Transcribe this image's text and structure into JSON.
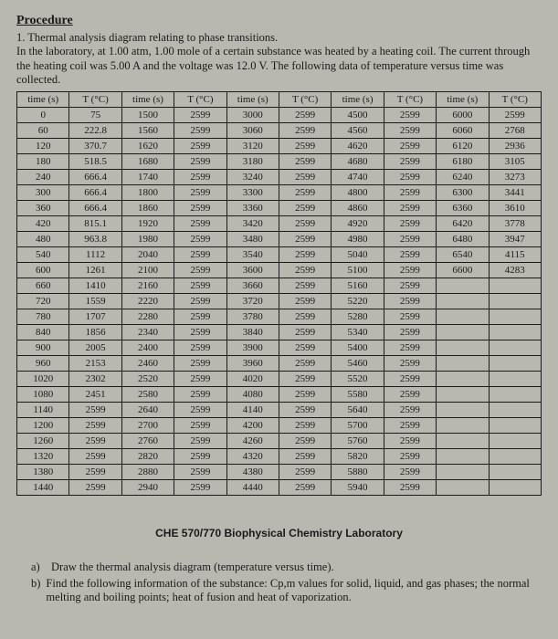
{
  "heading": "Procedure",
  "intro_lines": [
    "1. Thermal analysis diagram relating to phase transitions.",
    "In the laboratory, at 1.00 atm, 1.00 mole of a certain substance was heated by a heating coil. The current through the heating coil was 5.00 A and the voltage was 12.0 V. The following data of temperature versus time was collected."
  ],
  "table": {
    "headers": [
      "time (s)",
      "T (°C)",
      "time (s)",
      "T (°C)",
      "time (s)",
      "T (°C)",
      "time (s)",
      "T (°C)",
      "time (s)",
      "T (°C)"
    ],
    "rows": [
      [
        "0",
        "75",
        "1500",
        "2599",
        "3000",
        "2599",
        "4500",
        "2599",
        "6000",
        "2599"
      ],
      [
        "60",
        "222.8",
        "1560",
        "2599",
        "3060",
        "2599",
        "4560",
        "2599",
        "6060",
        "2768"
      ],
      [
        "120",
        "370.7",
        "1620",
        "2599",
        "3120",
        "2599",
        "4620",
        "2599",
        "6120",
        "2936"
      ],
      [
        "180",
        "518.5",
        "1680",
        "2599",
        "3180",
        "2599",
        "4680",
        "2599",
        "6180",
        "3105"
      ],
      [
        "240",
        "666.4",
        "1740",
        "2599",
        "3240",
        "2599",
        "4740",
        "2599",
        "6240",
        "3273"
      ],
      [
        "300",
        "666.4",
        "1800",
        "2599",
        "3300",
        "2599",
        "4800",
        "2599",
        "6300",
        "3441"
      ],
      [
        "360",
        "666.4",
        "1860",
        "2599",
        "3360",
        "2599",
        "4860",
        "2599",
        "6360",
        "3610"
      ],
      [
        "420",
        "815.1",
        "1920",
        "2599",
        "3420",
        "2599",
        "4920",
        "2599",
        "6420",
        "3778"
      ],
      [
        "480",
        "963.8",
        "1980",
        "2599",
        "3480",
        "2599",
        "4980",
        "2599",
        "6480",
        "3947"
      ],
      [
        "540",
        "1112",
        "2040",
        "2599",
        "3540",
        "2599",
        "5040",
        "2599",
        "6540",
        "4115"
      ],
      [
        "600",
        "1261",
        "2100",
        "2599",
        "3600",
        "2599",
        "5100",
        "2599",
        "6600",
        "4283"
      ],
      [
        "660",
        "1410",
        "2160",
        "2599",
        "3660",
        "2599",
        "5160",
        "2599",
        "",
        ""
      ],
      [
        "720",
        "1559",
        "2220",
        "2599",
        "3720",
        "2599",
        "5220",
        "2599",
        "",
        ""
      ],
      [
        "780",
        "1707",
        "2280",
        "2599",
        "3780",
        "2599",
        "5280",
        "2599",
        "",
        ""
      ],
      [
        "840",
        "1856",
        "2340",
        "2599",
        "3840",
        "2599",
        "5340",
        "2599",
        "",
        ""
      ],
      [
        "900",
        "2005",
        "2400",
        "2599",
        "3900",
        "2599",
        "5400",
        "2599",
        "",
        ""
      ],
      [
        "960",
        "2153",
        "2460",
        "2599",
        "3960",
        "2599",
        "5460",
        "2599",
        "",
        ""
      ],
      [
        "1020",
        "2302",
        "2520",
        "2599",
        "4020",
        "2599",
        "5520",
        "2599",
        "",
        ""
      ],
      [
        "1080",
        "2451",
        "2580",
        "2599",
        "4080",
        "2599",
        "5580",
        "2599",
        "",
        ""
      ],
      [
        "1140",
        "2599",
        "2640",
        "2599",
        "4140",
        "2599",
        "5640",
        "2599",
        "",
        ""
      ],
      [
        "1200",
        "2599",
        "2700",
        "2599",
        "4200",
        "2599",
        "5700",
        "2599",
        "",
        ""
      ],
      [
        "1260",
        "2599",
        "2760",
        "2599",
        "4260",
        "2599",
        "5760",
        "2599",
        "",
        ""
      ],
      [
        "1320",
        "2599",
        "2820",
        "2599",
        "4320",
        "2599",
        "5820",
        "2599",
        "",
        ""
      ],
      [
        "1380",
        "2599",
        "2880",
        "2599",
        "4380",
        "2599",
        "5880",
        "2599",
        "",
        ""
      ],
      [
        "1440",
        "2599",
        "2940",
        "2599",
        "4440",
        "2599",
        "5940",
        "2599",
        "",
        ""
      ]
    ]
  },
  "footer": "CHE 570/770 Biophysical Chemistry Laboratory",
  "questions": [
    {
      "lbl": "a)",
      "txt": "Draw the thermal analysis diagram (temperature versus time)."
    },
    {
      "lbl": "b)",
      "txt": "Find the following information of the substance: Cp,m values for solid, liquid, and gas phases; the normal melting and boiling points; heat of fusion and heat of vaporization."
    }
  ]
}
